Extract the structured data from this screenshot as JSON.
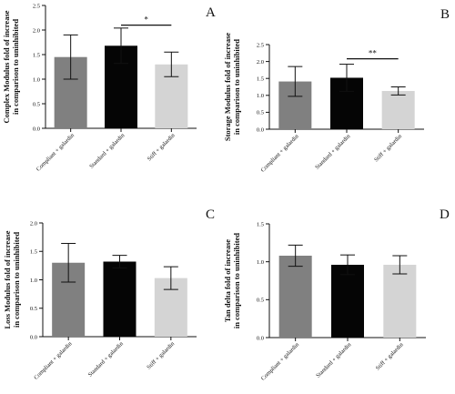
{
  "colors": {
    "bar_fill": [
      "#808080",
      "#050505",
      "#d4d4d4"
    ],
    "axis": "#111111",
    "error_bar": "#111111"
  },
  "chart_data": [
    {
      "type": "bar",
      "panel": "A",
      "categories": [
        "Compliant + galardin",
        "Standard + galardin",
        "Stiff + galardin"
      ],
      "values": [
        1.45,
        1.68,
        1.3
      ],
      "errors": [
        0.45,
        0.36,
        0.25
      ],
      "ylabel": [
        "Complex Modulus fold of increase",
        "in comparison to uninhibited"
      ],
      "ylim": [
        0,
        2.5
      ],
      "yticks": [
        0.0,
        0.5,
        1.0,
        1.5,
        2.0,
        2.5
      ],
      "ytick_labels": [
        "0.0",
        "0.5",
        "1.0",
        "1.5",
        "2.0",
        "2.5"
      ],
      "significance": [
        {
          "between": [
            1,
            2
          ],
          "label": "*",
          "y": 2.1
        }
      ]
    },
    {
      "type": "bar",
      "panel": "B",
      "categories": [
        "Compliant + galardin",
        "Standard + galardin",
        "Stiff + galardin"
      ],
      "values": [
        1.41,
        1.52,
        1.13
      ],
      "errors": [
        0.44,
        0.4,
        0.12
      ],
      "ylabel": [
        "Storage Modulus fold of increase",
        "in comparison to uninhibited"
      ],
      "ylim": [
        0,
        2.5
      ],
      "yticks": [
        0.0,
        0.5,
        1.0,
        1.5,
        2.0,
        2.5
      ],
      "ytick_labels": [
        "0.0",
        "0.5",
        "1.0",
        "1.5",
        "2.0",
        "2.5"
      ],
      "significance": [
        {
          "between": [
            1,
            2
          ],
          "label": "**",
          "y": 2.08
        }
      ]
    },
    {
      "type": "bar",
      "panel": "C",
      "categories": [
        "Compliant + galardin",
        "Standard + galardin",
        "Stiff + galardin"
      ],
      "values": [
        1.3,
        1.32,
        1.03
      ],
      "errors": [
        0.34,
        0.11,
        0.2
      ],
      "ylabel": [
        "Loss Modulus fold of increase",
        "in comparison to uninhibited"
      ],
      "ylim": [
        0,
        2.0
      ],
      "yticks": [
        0.0,
        0.5,
        1.0,
        1.5,
        2.0
      ],
      "ytick_labels": [
        "0.0",
        "0.5",
        "1.0",
        "1.5",
        "2.0"
      ],
      "significance": []
    },
    {
      "type": "bar",
      "panel": "D",
      "categories": [
        "Compliant + galardin",
        "Standard + galardin",
        "Stiff + galardin"
      ],
      "values": [
        1.08,
        0.96,
        0.96
      ],
      "errors": [
        0.14,
        0.13,
        0.12
      ],
      "ylabel": [
        "Tan delta  fold of increase",
        "in comparison to uninhibited"
      ],
      "ylim": [
        0,
        1.5
      ],
      "yticks": [
        0.0,
        0.5,
        1.0,
        1.5
      ],
      "ytick_labels": [
        "0.0",
        "0.5",
        "1.0",
        "1.5"
      ],
      "significance": []
    }
  ]
}
